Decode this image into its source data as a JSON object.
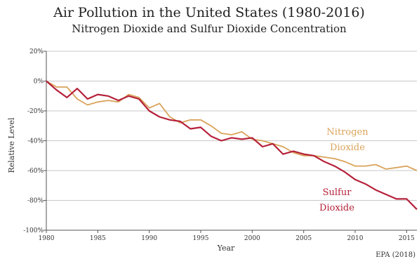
{
  "chart_data": {
    "type": "line",
    "title": "Air Pollution in the United States (1980-2016)",
    "subtitle": "Nitrogen Dioxide and Sulfur Dioxide Concentration",
    "xlabel": "Year",
    "ylabel": "Relative Level",
    "source": "EPA (2018)",
    "xlim": [
      1980,
      2016
    ],
    "ylim": [
      -100,
      20
    ],
    "x_ticks": [
      1980,
      1985,
      1990,
      1995,
      2000,
      2005,
      2010,
      2015
    ],
    "y_ticks": [
      20,
      0,
      -20,
      -40,
      -60,
      -80,
      -100
    ],
    "y_tick_labels": [
      "20%",
      "0%",
      "-20%",
      "-40%",
      "-60%",
      "-80%",
      "-100%"
    ],
    "grid": "horizontal",
    "x": [
      1980,
      1981,
      1982,
      1983,
      1984,
      1985,
      1986,
      1987,
      1988,
      1989,
      1990,
      1991,
      1992,
      1993,
      1994,
      1995,
      1996,
      1997,
      1998,
      1999,
      2000,
      2001,
      2002,
      2003,
      2004,
      2005,
      2006,
      2007,
      2008,
      2009,
      2010,
      2011,
      2012,
      2013,
      2014,
      2015,
      2016
    ],
    "series": [
      {
        "name": "Nitrogen Dioxide",
        "label_lines": [
          "Nitrogen",
          "Dioxide"
        ],
        "color": "#d9a35a",
        "values": [
          0,
          -4,
          -4,
          -12,
          -16,
          -14,
          -13,
          -14,
          -9,
          -11,
          -18,
          -15,
          -24,
          -28,
          -26,
          -26,
          -30,
          -35,
          -36,
          -34,
          -39,
          -40,
          -42,
          -44,
          -48,
          -50,
          -50,
          -51,
          -52,
          -54,
          -57,
          -57,
          -56,
          -59,
          -58,
          -57,
          -60
        ]
      },
      {
        "name": "Sulfur Dioxide",
        "label_lines": [
          "Sulfur",
          "Dioxide"
        ],
        "color": "#b5213a",
        "values": [
          0,
          -6,
          -11,
          -5,
          -12,
          -9,
          -10,
          -13,
          -10,
          -12,
          -20,
          -24,
          -26,
          -27,
          -32,
          -31,
          -37,
          -40,
          -38,
          -39,
          -38,
          -44,
          -42,
          -49,
          -47,
          -49,
          -50,
          -54,
          -57,
          -61,
          -66,
          -69,
          -73,
          -76,
          -79,
          -79,
          -86
        ]
      }
    ]
  }
}
